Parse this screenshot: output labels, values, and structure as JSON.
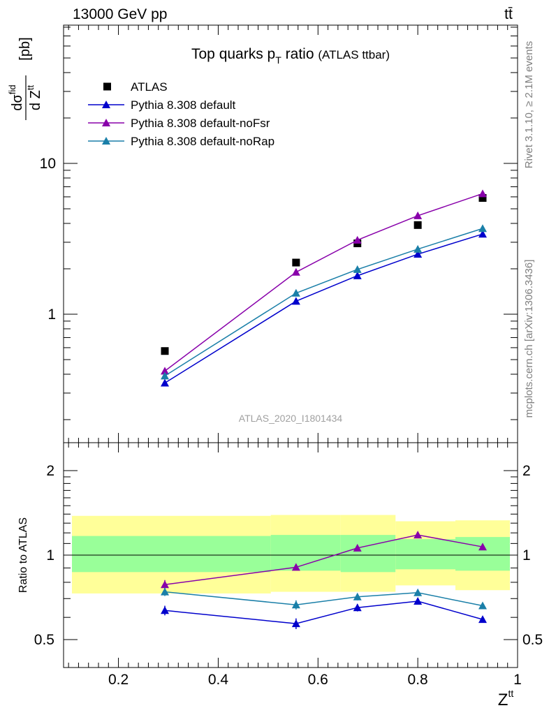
{
  "header": {
    "energy_label": "13000 GeV pp",
    "process_label": "tt̄"
  },
  "chart_data": [
    {
      "type": "scatter",
      "panel": "main",
      "title": "Top quarks p",
      "title_sub": "T",
      "title_rest": " ratio",
      "title_note": "(ATLAS ttbar)",
      "ylabel": "dσ^fid/dZ^tt [pb]",
      "ylabel_num": "dσ",
      "ylabel_num_sup": "fid",
      "ylabel_den": "d Z",
      "ylabel_den_sup": "tt",
      "ylabel_unit": "[pb]",
      "y_scale": "log",
      "ylim": [
        0.2,
        90
      ],
      "xlim": [
        0.09,
        1.0
      ],
      "y_ticks": [
        1,
        10
      ],
      "y_tick_labels": [
        "1",
        "10"
      ],
      "legend_position": "top-left",
      "analysis_label": "ATLAS_2020_I1801434",
      "series": [
        {
          "name": "ATLAS",
          "marker": "square",
          "color": "#000000",
          "x": [
            0.293,
            0.556,
            0.679,
            0.8,
            0.93
          ],
          "y": [
            0.57,
            2.2,
            2.95,
            3.9,
            5.9
          ]
        },
        {
          "name": "Pythia 8.308 default",
          "marker": "triangle",
          "color": "#0000cc",
          "x": [
            0.293,
            0.556,
            0.679,
            0.8,
            0.93
          ],
          "y": [
            0.35,
            1.22,
            1.8,
            2.5,
            3.4
          ]
        },
        {
          "name": "Pythia 8.308 default-noFsr",
          "marker": "triangle",
          "color": "#8800aa",
          "x": [
            0.293,
            0.556,
            0.679,
            0.8,
            0.93
          ],
          "y": [
            0.42,
            1.9,
            3.1,
            4.5,
            6.3
          ]
        },
        {
          "name": "Pythia 8.308 default-noRap",
          "marker": "triangle",
          "color": "#1a7fa8",
          "x": [
            0.293,
            0.556,
            0.679,
            0.8,
            0.93
          ],
          "y": [
            0.39,
            1.38,
            1.98,
            2.7,
            3.7
          ]
        }
      ]
    },
    {
      "type": "line",
      "panel": "ratio",
      "ylabel": "Ratio to ATLAS",
      "xlabel": "Z",
      "xlabel_sup": "tt",
      "y_scale": "log",
      "ylim": [
        0.45,
        2.4
      ],
      "xlim": [
        0.09,
        1.0
      ],
      "x_ticks": [
        0.2,
        0.4,
        0.6,
        0.8,
        1.0
      ],
      "x_tick_labels": [
        "0.2",
        "0.4",
        "0.6",
        "0.8",
        "1"
      ],
      "y_ticks": [
        0.5,
        1,
        2
      ],
      "y_tick_labels": [
        "0.5",
        "1",
        "2"
      ],
      "reference_line": 1,
      "uncertainty_bands": {
        "edges": [
          0.1,
          0.49,
          0.63,
          0.74,
          0.86,
          1.0
        ],
        "inner": [
          [
            0.87,
            1.17
          ],
          [
            0.88,
            1.18
          ],
          [
            0.87,
            1.18
          ],
          [
            0.89,
            1.14
          ],
          [
            0.88,
            1.16
          ]
        ],
        "outer": [
          [
            0.73,
            1.38
          ],
          [
            0.74,
            1.39
          ],
          [
            0.74,
            1.39
          ],
          [
            0.78,
            1.32
          ],
          [
            0.75,
            1.33
          ]
        ],
        "inner_color": "#99ff99",
        "outer_color": "#ffff99"
      },
      "series": [
        {
          "name": "Pythia 8.308 default",
          "color": "#0000cc",
          "x": [
            0.293,
            0.556,
            0.679,
            0.8,
            0.93
          ],
          "y": [
            0.635,
            0.57,
            0.65,
            0.685,
            0.59
          ],
          "yerr": [
            0.025,
            0.025,
            0.02,
            0.015,
            0.012
          ]
        },
        {
          "name": "Pythia 8.308 default-noFsr",
          "color": "#8800aa",
          "x": [
            0.293,
            0.556,
            0.679,
            0.8,
            0.93
          ],
          "y": [
            0.785,
            0.905,
            1.06,
            1.18,
            1.07
          ],
          "yerr": [
            0.03,
            0.02,
            0.015,
            0.012,
            0.01
          ]
        },
        {
          "name": "Pythia 8.308 default-noRap",
          "color": "#1a7fa8",
          "x": [
            0.293,
            0.556,
            0.679,
            0.8,
            0.93
          ],
          "y": [
            0.74,
            0.665,
            0.71,
            0.735,
            0.66
          ],
          "yerr": [
            0.025,
            0.025,
            0.02,
            0.015,
            0.012
          ]
        }
      ]
    }
  ],
  "side_text": {
    "rivet": "Rivet 3.1.10, ≥ 2.1M events",
    "mcplots": "mcplots.cern.ch [arXiv:1306.3436]"
  }
}
